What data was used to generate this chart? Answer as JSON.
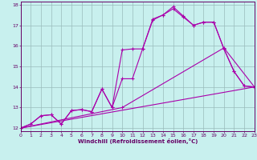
{
  "background_color": "#c8f0ee",
  "line_color": "#aa00aa",
  "grid_color": "#99bbbb",
  "xlabel": "Windchill (Refroidissement éolien,°C)",
  "xlim": [
    0,
    23
  ],
  "ylim": [
    11.85,
    18.15
  ],
  "yticks": [
    12,
    13,
    14,
    15,
    16,
    17,
    18
  ],
  "xticks": [
    0,
    1,
    2,
    3,
    4,
    5,
    6,
    7,
    8,
    9,
    10,
    11,
    12,
    13,
    14,
    15,
    16,
    17,
    18,
    19,
    20,
    21,
    22,
    23
  ],
  "series": [
    {
      "x": [
        0,
        1,
        2,
        3,
        4,
        5,
        6,
        7,
        8,
        9,
        10,
        11,
        12,
        13,
        14,
        15,
        16,
        17,
        18,
        19,
        20,
        21,
        22,
        23
      ],
      "y": [
        12.0,
        12.2,
        12.6,
        12.65,
        12.2,
        12.85,
        12.9,
        12.8,
        13.9,
        13.0,
        15.8,
        15.85,
        15.85,
        17.3,
        17.5,
        17.8,
        17.4,
        17.0,
        17.15,
        17.15,
        15.85,
        14.75,
        14.05,
        14.0
      ]
    },
    {
      "x": [
        0,
        1,
        2,
        3,
        4,
        5,
        6,
        7,
        8,
        9,
        10,
        11,
        12,
        13,
        14,
        15,
        16,
        17,
        18,
        19,
        20,
        21,
        22,
        23
      ],
      "y": [
        12.0,
        12.2,
        12.6,
        12.65,
        12.2,
        12.85,
        12.9,
        12.8,
        13.9,
        13.0,
        14.4,
        14.4,
        15.85,
        17.25,
        17.5,
        17.9,
        17.45,
        17.0,
        17.15,
        17.15,
        15.85,
        14.75,
        14.05,
        14.0
      ]
    },
    {
      "x": [
        0,
        10,
        20,
        23
      ],
      "y": [
        12.0,
        13.0,
        15.9,
        14.0
      ]
    },
    {
      "x": [
        0,
        23
      ],
      "y": [
        12.0,
        14.0
      ]
    }
  ]
}
